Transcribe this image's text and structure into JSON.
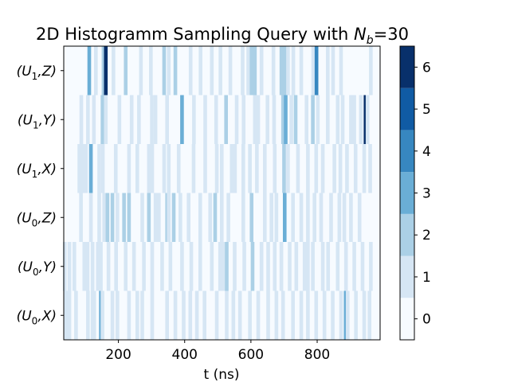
{
  "chart_data": {
    "type": "heatmap",
    "title": "2D Histogramm Sampling Query with N_b=30",
    "title_parts": {
      "prefix": "2D Histogramm Sampling Query with ",
      "symbol": "N",
      "subscript": "b",
      "suffix": "=30"
    },
    "xlabel": "t (ns)",
    "ylabel": "",
    "xlim": [
      35,
      990
    ],
    "x_ticks": [
      "200",
      "400",
      "600",
      "800"
    ],
    "x_tick_values": [
      200,
      400,
      600,
      800
    ],
    "rows": [
      {
        "label_main": "(U",
        "label_sub": "1",
        "label_tail": ",Z)"
      },
      {
        "label_main": "(U",
        "label_sub": "1",
        "label_tail": ",Y)"
      },
      {
        "label_main": "(U",
        "label_sub": "1",
        "label_tail": ",X)"
      },
      {
        "label_main": "(U",
        "label_sub": "0",
        "label_tail": ",Z)"
      },
      {
        "label_main": "(U",
        "label_sub": "0",
        "label_tail": ",Y)"
      },
      {
        "label_main": "(U",
        "label_sub": "0",
        "label_tail": ",X)"
      }
    ],
    "colorbar": {
      "min": -0.5,
      "max": 6.5,
      "ticks": [
        "0",
        "1",
        "2",
        "3",
        "4",
        "5",
        "6"
      ],
      "colors": [
        "#f7fbff",
        "#d6e6f4",
        "#abd0e6",
        "#6aaed6",
        "#3787c0",
        "#105ba4",
        "#08306b"
      ]
    },
    "bins": {
      "(U1,Z)": [
        [
          112,
          3
        ],
        [
          132,
          1
        ],
        [
          155,
          2
        ],
        [
          162,
          6
        ],
        [
          185,
          1
        ],
        [
          222,
          2
        ],
        [
          268,
          1
        ],
        [
          298,
          1
        ],
        [
          338,
          2
        ],
        [
          352,
          1
        ],
        [
          372,
          2
        ],
        [
          418,
          1
        ],
        [
          448,
          1
        ],
        [
          482,
          1
        ],
        [
          508,
          1
        ],
        [
          538,
          1
        ],
        [
          575,
          1
        ],
        [
          592,
          1
        ],
        [
          602,
          2
        ],
        [
          612,
          2
        ],
        [
          632,
          1
        ],
        [
          668,
          1
        ],
        [
          692,
          2
        ],
        [
          702,
          2
        ],
        [
          712,
          1
        ],
        [
          728,
          1
        ],
        [
          752,
          1
        ],
        [
          788,
          1
        ],
        [
          798,
          4
        ],
        [
          832,
          1
        ],
        [
          848,
          1
        ],
        [
          872,
          1
        ],
        [
          962,
          1
        ]
      ],
      "(U1,Y)": [
        [
          88,
          1
        ],
        [
          108,
          1
        ],
        [
          126,
          1
        ],
        [
          152,
          2
        ],
        [
          162,
          1
        ],
        [
          203,
          1
        ],
        [
          240,
          1
        ],
        [
          262,
          1
        ],
        [
          301,
          1
        ],
        [
          312,
          1
        ],
        [
          347,
          1
        ],
        [
          392,
          3
        ],
        [
          428,
          1
        ],
        [
          462,
          1
        ],
        [
          495,
          1
        ],
        [
          525,
          2
        ],
        [
          557,
          1
        ],
        [
          578,
          1
        ],
        [
          612,
          1
        ],
        [
          622,
          1
        ],
        [
          650,
          1
        ],
        [
          670,
          1
        ],
        [
          697,
          2
        ],
        [
          705,
          3
        ],
        [
          722,
          1
        ],
        [
          735,
          2
        ],
        [
          768,
          1
        ],
        [
          787,
          2
        ],
        [
          802,
          1
        ],
        [
          832,
          1
        ],
        [
          862,
          1
        ],
        [
          877,
          1
        ],
        [
          902,
          1
        ],
        [
          912,
          1
        ],
        [
          932,
          1
        ],
        [
          946,
          6
        ],
        [
          952,
          1
        ]
      ],
      "(U1,X)": [
        [
          82,
          1
        ],
        [
          92,
          1
        ],
        [
          102,
          1
        ],
        [
          117,
          3
        ],
        [
          142,
          1
        ],
        [
          153,
          1
        ],
        [
          192,
          1
        ],
        [
          232,
          1
        ],
        [
          257,
          1
        ],
        [
          292,
          1
        ],
        [
          302,
          1
        ],
        [
          338,
          1
        ],
        [
          352,
          1
        ],
        [
          382,
          1
        ],
        [
          427,
          1
        ],
        [
          462,
          1
        ],
        [
          497,
          1
        ],
        [
          512,
          1
        ],
        [
          542,
          1
        ],
        [
          552,
          1
        ],
        [
          577,
          1
        ],
        [
          597,
          1
        ],
        [
          618,
          1
        ],
        [
          642,
          1
        ],
        [
          672,
          1
        ],
        [
          700,
          2
        ],
        [
          712,
          1
        ],
        [
          742,
          1
        ],
        [
          772,
          1
        ],
        [
          797,
          1
        ],
        [
          817,
          1
        ],
        [
          852,
          1
        ],
        [
          870,
          1
        ],
        [
          890,
          1
        ],
        [
          916,
          1
        ],
        [
          942,
          1
        ],
        [
          960,
          1
        ]
      ],
      "(U0,Z)": [
        [
          87,
          1
        ],
        [
          117,
          1
        ],
        [
          142,
          1
        ],
        [
          157,
          1
        ],
        [
          167,
          2
        ],
        [
          182,
          2
        ],
        [
          197,
          1
        ],
        [
          217,
          2
        ],
        [
          232,
          2
        ],
        [
          272,
          1
        ],
        [
          292,
          2
        ],
        [
          312,
          1
        ],
        [
          322,
          1
        ],
        [
          347,
          2
        ],
        [
          352,
          1
        ],
        [
          367,
          2
        ],
        [
          387,
          1
        ],
        [
          412,
          1
        ],
        [
          447,
          1
        ],
        [
          477,
          1
        ],
        [
          492,
          2
        ],
        [
          512,
          1
        ],
        [
          532,
          1
        ],
        [
          577,
          1
        ],
        [
          602,
          2
        ],
        [
          642,
          1
        ],
        [
          662,
          1
        ],
        [
          677,
          1
        ],
        [
          702,
          3
        ],
        [
          727,
          1
        ],
        [
          752,
          1
        ],
        [
          772,
          1
        ],
        [
          792,
          1
        ],
        [
          812,
          1
        ],
        [
          842,
          1
        ],
        [
          867,
          1
        ],
        [
          882,
          1
        ],
        [
          902,
          1
        ],
        [
          928,
          1
        ]
      ],
      "(U0,Y)": [
        [
          38,
          1
        ],
        [
          52,
          1
        ],
        [
          67,
          1
        ],
        [
          97,
          1
        ],
        [
          107,
          1
        ],
        [
          122,
          1
        ],
        [
          138,
          1
        ],
        [
          147,
          1
        ],
        [
          170,
          1
        ],
        [
          193,
          1
        ],
        [
          222,
          1
        ],
        [
          247,
          1
        ],
        [
          277,
          1
        ],
        [
          302,
          1
        ],
        [
          332,
          1
        ],
        [
          357,
          1
        ],
        [
          392,
          1
        ],
        [
          420,
          1
        ],
        [
          447,
          1
        ],
        [
          482,
          1
        ],
        [
          507,
          1
        ],
        [
          517,
          1
        ],
        [
          527,
          2
        ],
        [
          551,
          1
        ],
        [
          580,
          1
        ],
        [
          605,
          2
        ],
        [
          632,
          1
        ],
        [
          652,
          1
        ],
        [
          672,
          1
        ],
        [
          692,
          1
        ],
        [
          717,
          1
        ],
        [
          737,
          1
        ],
        [
          762,
          1
        ],
        [
          772,
          1
        ],
        [
          787,
          1
        ],
        [
          817,
          1
        ],
        [
          833,
          1
        ],
        [
          862,
          1
        ],
        [
          887,
          1
        ],
        [
          912,
          1
        ],
        [
          937,
          1
        ],
        [
          962,
          1
        ]
      ],
      "(U0,X)": [
        [
          42,
          1
        ],
        [
          52,
          1
        ],
        [
          72,
          1
        ],
        [
          108,
          1
        ],
        [
          122,
          1
        ],
        [
          127,
          1
        ],
        [
          147,
          3
        ],
        [
          152,
          1
        ],
        [
          182,
          1
        ],
        [
          197,
          1
        ],
        [
          232,
          1
        ],
        [
          257,
          1
        ],
        [
          272,
          1
        ],
        [
          302,
          1
        ],
        [
          347,
          1
        ],
        [
          372,
          1
        ],
        [
          397,
          1
        ],
        [
          417,
          1
        ],
        [
          437,
          1
        ],
        [
          460,
          1
        ],
        [
          497,
          1
        ],
        [
          527,
          1
        ],
        [
          547,
          1
        ],
        [
          567,
          1
        ],
        [
          597,
          1
        ],
        [
          622,
          1
        ],
        [
          652,
          1
        ],
        [
          677,
          1
        ],
        [
          697,
          1
        ],
        [
          727,
          1
        ],
        [
          752,
          1
        ],
        [
          772,
          1
        ],
        [
          797,
          1
        ],
        [
          822,
          1
        ],
        [
          847,
          1
        ],
        [
          872,
          1
        ],
        [
          886,
          3
        ],
        [
          892,
          1
        ],
        [
          917,
          1
        ],
        [
          942,
          1
        ],
        [
          958,
          1
        ]
      ]
    }
  }
}
